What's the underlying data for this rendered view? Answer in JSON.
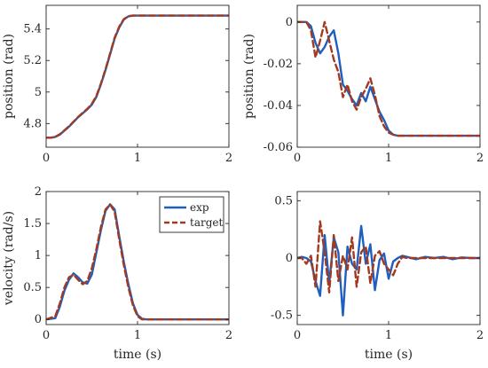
{
  "figure": {
    "colors": {
      "exp": "#1f5fbf",
      "target": "#a33a1f"
    }
  },
  "chart_data": [
    {
      "type": "line",
      "panel": "top-left",
      "title": "",
      "xlabel": "",
      "ylabel": "position (rad)",
      "xlim": [
        0,
        2
      ],
      "ylim": [
        4.65,
        5.55
      ],
      "xticks": [
        0,
        1,
        2
      ],
      "xtick_labels": [
        "0",
        "1",
        "2"
      ],
      "yticks": [
        4.8,
        5.0,
        5.2,
        5.4
      ],
      "ytick_labels": [
        "4.8",
        "5",
        "5.2",
        "5.4"
      ],
      "grid": false,
      "series": [
        {
          "key": "exp",
          "x": [
            0,
            0.05,
            0.1,
            0.15,
            0.2,
            0.25,
            0.3,
            0.35,
            0.4,
            0.45,
            0.5,
            0.55,
            0.6,
            0.65,
            0.7,
            0.75,
            0.8,
            0.85,
            0.9,
            0.95,
            1.0,
            1.1,
            1.2,
            1.4,
            1.6,
            1.8,
            2.0
          ],
          "y": [
            4.71,
            4.71,
            4.715,
            4.73,
            4.755,
            4.78,
            4.81,
            4.84,
            4.865,
            4.89,
            4.92,
            4.97,
            5.05,
            5.14,
            5.24,
            5.34,
            5.41,
            5.46,
            5.48,
            5.485,
            5.485,
            5.485,
            5.485,
            5.485,
            5.485,
            5.485,
            5.485
          ]
        },
        {
          "key": "target",
          "x": [
            0,
            0.05,
            0.1,
            0.15,
            0.2,
            0.25,
            0.3,
            0.35,
            0.4,
            0.45,
            0.5,
            0.55,
            0.6,
            0.65,
            0.7,
            0.75,
            0.8,
            0.85,
            0.9,
            0.95,
            1.0,
            1.1,
            1.2,
            1.4,
            1.6,
            1.8,
            2.0
          ],
          "y": [
            4.71,
            4.71,
            4.716,
            4.732,
            4.757,
            4.783,
            4.812,
            4.842,
            4.868,
            4.893,
            4.925,
            4.975,
            5.055,
            5.145,
            5.245,
            5.345,
            5.415,
            5.462,
            5.481,
            5.485,
            5.485,
            5.485,
            5.485,
            5.485,
            5.485,
            5.485,
            5.485
          ]
        }
      ]
    },
    {
      "type": "line",
      "panel": "top-right",
      "title": "",
      "xlabel": "",
      "ylabel": "position (rad)",
      "xlim": [
        0,
        2
      ],
      "ylim": [
        -0.06,
        0.008
      ],
      "xticks": [
        0,
        1,
        2
      ],
      "xtick_labels": [
        "0",
        "1",
        "2"
      ],
      "yticks": [
        -0.06,
        -0.04,
        -0.02,
        0
      ],
      "ytick_labels": [
        "-0.06",
        "-0.04",
        "-0.02",
        "0"
      ],
      "grid": false,
      "series": [
        {
          "key": "exp",
          "x": [
            0,
            0.1,
            0.15,
            0.2,
            0.25,
            0.3,
            0.35,
            0.4,
            0.45,
            0.5,
            0.55,
            0.6,
            0.65,
            0.7,
            0.75,
            0.8,
            0.85,
            0.9,
            0.95,
            1.0,
            1.05,
            1.1,
            1.2,
            1.4,
            1.6,
            1.8,
            2.0
          ],
          "y": [
            0,
            0,
            -0.002,
            -0.01,
            -0.015,
            -0.012,
            -0.007,
            -0.004,
            -0.015,
            -0.03,
            -0.033,
            -0.037,
            -0.04,
            -0.034,
            -0.038,
            -0.031,
            -0.037,
            -0.043,
            -0.047,
            -0.052,
            -0.054,
            -0.0545,
            -0.0545,
            -0.0545,
            -0.0545,
            -0.0545,
            -0.0545
          ]
        },
        {
          "key": "target",
          "x": [
            0,
            0.1,
            0.15,
            0.2,
            0.25,
            0.3,
            0.35,
            0.4,
            0.45,
            0.5,
            0.55,
            0.6,
            0.65,
            0.7,
            0.75,
            0.8,
            0.85,
            0.9,
            0.95,
            1.0,
            1.05,
            1.1,
            1.2,
            1.4,
            1.6,
            1.8,
            2.0
          ],
          "y": [
            0,
            0,
            -0.004,
            -0.017,
            -0.009,
            0.0,
            -0.009,
            -0.018,
            -0.024,
            -0.036,
            -0.03,
            -0.038,
            -0.042,
            -0.036,
            -0.032,
            -0.027,
            -0.035,
            -0.045,
            -0.05,
            -0.053,
            -0.054,
            -0.0545,
            -0.0545,
            -0.0545,
            -0.0545,
            -0.0545,
            -0.0545
          ]
        }
      ]
    },
    {
      "type": "line",
      "panel": "bottom-left",
      "title": "",
      "xlabel": "time (s)",
      "ylabel": "velocity (rad/s)",
      "xlim": [
        0,
        2
      ],
      "ylim": [
        -0.08,
        2.0
      ],
      "xticks": [
        0,
        1,
        2
      ],
      "xtick_labels": [
        "0",
        "1",
        "2"
      ],
      "yticks": [
        0,
        0.5,
        1,
        1.5,
        2
      ],
      "ytick_labels": [
        "0",
        "0.5",
        "1",
        "1.5",
        "2"
      ],
      "grid": false,
      "legend": {
        "placement": "top-right",
        "labels": [
          "exp",
          "target"
        ]
      },
      "series": [
        {
          "key": "exp",
          "x": [
            0,
            0.1,
            0.15,
            0.2,
            0.25,
            0.3,
            0.35,
            0.4,
            0.45,
            0.5,
            0.55,
            0.6,
            0.65,
            0.7,
            0.75,
            0.8,
            0.85,
            0.9,
            0.95,
            1.0,
            1.05,
            1.1,
            1.2,
            1.4,
            1.6,
            1.8,
            2.0
          ],
          "y": [
            0,
            0.02,
            0.2,
            0.45,
            0.62,
            0.72,
            0.66,
            0.58,
            0.56,
            0.7,
            1.05,
            1.4,
            1.7,
            1.8,
            1.72,
            1.3,
            0.9,
            0.55,
            0.25,
            0.07,
            0.01,
            0,
            0,
            0,
            0,
            0,
            0
          ]
        },
        {
          "key": "target",
          "x": [
            0,
            0.1,
            0.15,
            0.2,
            0.25,
            0.3,
            0.35,
            0.4,
            0.45,
            0.5,
            0.55,
            0.6,
            0.65,
            0.7,
            0.75,
            0.8,
            0.85,
            0.9,
            0.95,
            1.0,
            1.05,
            1.1,
            1.2,
            1.4,
            1.6,
            1.8,
            2.0
          ],
          "y": [
            0,
            0.05,
            0.25,
            0.5,
            0.66,
            0.7,
            0.62,
            0.55,
            0.6,
            0.8,
            1.1,
            1.45,
            1.72,
            1.8,
            1.68,
            1.25,
            0.85,
            0.5,
            0.22,
            0.05,
            0,
            0,
            0,
            0,
            0,
            0,
            0
          ]
        }
      ]
    },
    {
      "type": "line",
      "panel": "bottom-right",
      "title": "",
      "xlabel": "time (s)",
      "ylabel": "",
      "xlim": [
        0,
        2
      ],
      "ylim": [
        -0.58,
        0.58
      ],
      "xticks": [
        0,
        1,
        2
      ],
      "xtick_labels": [
        "0",
        "1",
        "2"
      ],
      "yticks": [
        -0.5,
        0,
        0.5
      ],
      "ytick_labels": [
        "-0.5",
        "0",
        "0.5"
      ],
      "grid": false,
      "series": [
        {
          "key": "exp",
          "x": [
            0,
            0.05,
            0.1,
            0.15,
            0.2,
            0.25,
            0.3,
            0.35,
            0.4,
            0.45,
            0.5,
            0.55,
            0.6,
            0.65,
            0.7,
            0.75,
            0.8,
            0.85,
            0.9,
            0.95,
            1.0,
            1.05,
            1.1,
            1.15,
            1.2,
            1.3,
            1.4,
            1.5,
            1.6,
            1.7,
            1.8,
            1.9,
            2.0
          ],
          "y": [
            0,
            0.01,
            0,
            -0.03,
            -0.2,
            -0.33,
            0.2,
            -0.22,
            0.18,
            0.05,
            -0.5,
            0.1,
            -0.05,
            -0.1,
            0.28,
            -0.05,
            0.12,
            -0.28,
            -0.02,
            0.04,
            -0.18,
            -0.03,
            0.0,
            0.02,
            0.01,
            -0.01,
            0.01,
            0,
            0.01,
            -0.01,
            0.005,
            0,
            0
          ]
        },
        {
          "key": "target",
          "x": [
            0,
            0.05,
            0.1,
            0.15,
            0.2,
            0.25,
            0.3,
            0.35,
            0.4,
            0.45,
            0.5,
            0.55,
            0.6,
            0.65,
            0.7,
            0.75,
            0.8,
            0.85,
            0.9,
            0.95,
            1.0,
            1.05,
            1.1,
            1.15,
            1.2,
            1.3,
            1.4,
            1.5,
            1.6,
            1.7,
            1.8,
            1.9,
            2.0
          ],
          "y": [
            0,
            0,
            -0.05,
            0.02,
            -0.25,
            0.32,
            0.05,
            -0.3,
            0.2,
            -0.2,
            0.02,
            -0.1,
            0.18,
            -0.25,
            0.05,
            0.1,
            -0.22,
            0.02,
            0.06,
            -0.05,
            -0.1,
            -0.15,
            -0.05,
            0.01,
            0.0,
            0,
            0,
            0,
            0,
            0,
            0,
            0,
            0
          ]
        }
      ]
    }
  ]
}
